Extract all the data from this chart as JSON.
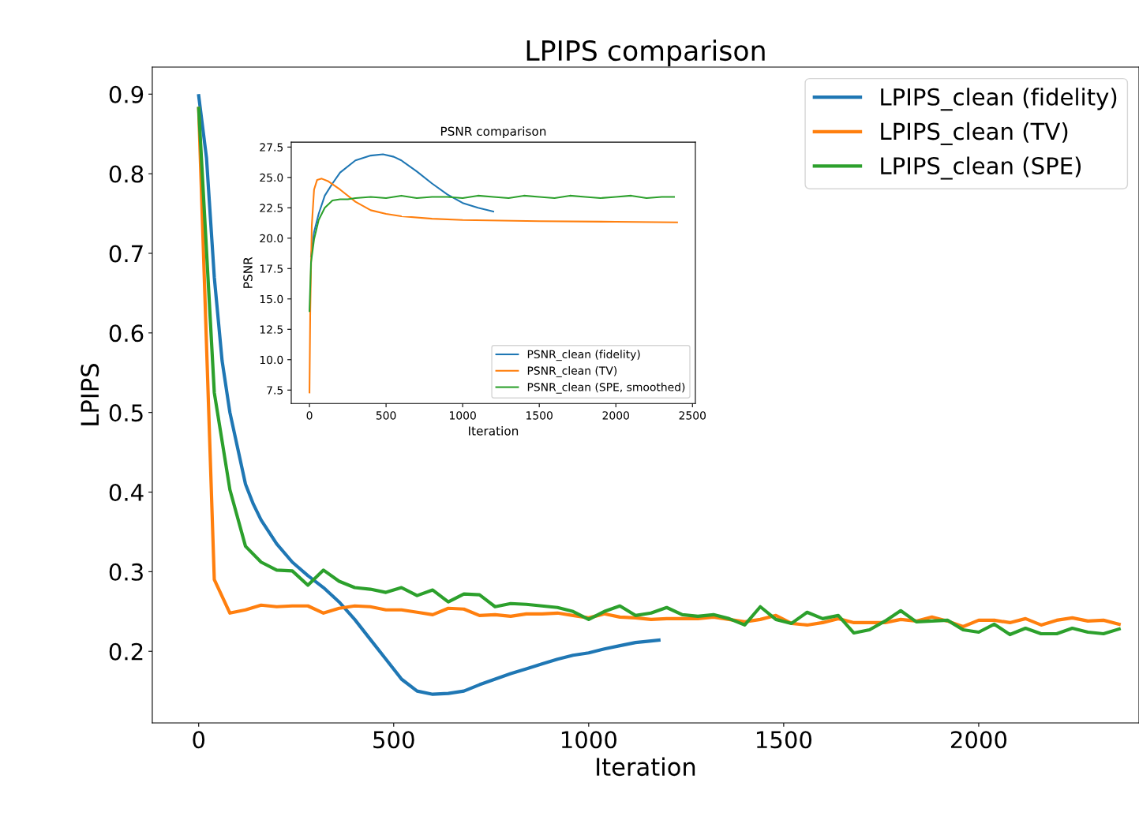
{
  "chart_data": [
    {
      "type": "line",
      "title": "LPIPS comparison",
      "xlabel": "Iteration",
      "ylabel": "LPIPS",
      "xlim": [
        -119,
        2411
      ],
      "ylim": [
        0.11,
        0.934
      ],
      "xticks": [
        0,
        500,
        1000,
        1500,
        2000
      ],
      "yticks": [
        0.2,
        0.3,
        0.4,
        0.5,
        0.6,
        0.7,
        0.8,
        0.9
      ],
      "grid": false,
      "legend": "top right",
      "series": [
        {
          "name": "LPIPS_clean (fidelity)",
          "color": "#1f77b4",
          "x": [
            0,
            20,
            40,
            60,
            80,
            100,
            120,
            140,
            160,
            200,
            240,
            280,
            320,
            360,
            400,
            440,
            480,
            520,
            560,
            600,
            640,
            680,
            720,
            760,
            800,
            840,
            880,
            920,
            960,
            1000,
            1040,
            1080,
            1120,
            1160,
            1180
          ],
          "values": [
            0.898,
            0.82,
            0.67,
            0.565,
            0.5,
            0.455,
            0.41,
            0.385,
            0.365,
            0.335,
            0.312,
            0.295,
            0.28,
            0.262,
            0.24,
            0.215,
            0.19,
            0.165,
            0.15,
            0.146,
            0.147,
            0.15,
            0.158,
            0.165,
            0.172,
            0.178,
            0.184,
            0.19,
            0.195,
            0.198,
            0.203,
            0.207,
            0.211,
            0.213,
            0.214
          ]
        },
        {
          "name": "LPIPS_clean (TV)",
          "color": "#ff7f0e",
          "x": [
            0,
            40,
            80,
            120,
            160,
            200,
            240,
            280,
            320,
            360,
            400,
            440,
            480,
            520,
            560,
            600,
            640,
            680,
            720,
            760,
            800,
            840,
            880,
            920,
            960,
            1000,
            1040,
            1080,
            1120,
            1160,
            1200,
            1240,
            1280,
            1320,
            1360,
            1400,
            1440,
            1480,
            1520,
            1560,
            1600,
            1640,
            1680,
            1720,
            1760,
            1800,
            1840,
            1880,
            1920,
            1960,
            2000,
            2040,
            2080,
            2120,
            2160,
            2200,
            2240,
            2280,
            2320,
            2360
          ],
          "values": [
            0.882,
            0.29,
            0.248,
            0.252,
            0.258,
            0.256,
            0.257,
            0.257,
            0.248,
            0.254,
            0.257,
            0.256,
            0.252,
            0.252,
            0.249,
            0.246,
            0.254,
            0.253,
            0.245,
            0.246,
            0.244,
            0.247,
            0.247,
            0.248,
            0.245,
            0.242,
            0.247,
            0.243,
            0.242,
            0.24,
            0.241,
            0.241,
            0.241,
            0.243,
            0.24,
            0.237,
            0.24,
            0.245,
            0.235,
            0.233,
            0.236,
            0.241,
            0.236,
            0.236,
            0.236,
            0.24,
            0.238,
            0.243,
            0.238,
            0.231,
            0.239,
            0.239,
            0.236,
            0.241,
            0.233,
            0.239,
            0.242,
            0.238,
            0.239,
            0.234
          ]
        },
        {
          "name": "LPIPS_clean (SPE)",
          "color": "#2ca02c",
          "x": [
            0,
            40,
            80,
            120,
            160,
            200,
            240,
            280,
            320,
            360,
            400,
            440,
            480,
            520,
            560,
            600,
            640,
            680,
            720,
            760,
            800,
            840,
            880,
            920,
            960,
            1000,
            1040,
            1080,
            1120,
            1160,
            1200,
            1240,
            1280,
            1320,
            1360,
            1400,
            1440,
            1480,
            1520,
            1560,
            1600,
            1640,
            1680,
            1720,
            1760,
            1800,
            1840,
            1880,
            1920,
            1960,
            2000,
            2040,
            2080,
            2120,
            2160,
            2200,
            2240,
            2280,
            2320,
            2360
          ],
          "values": [
            0.882,
            0.525,
            0.403,
            0.332,
            0.312,
            0.302,
            0.301,
            0.283,
            0.302,
            0.288,
            0.28,
            0.278,
            0.274,
            0.28,
            0.27,
            0.277,
            0.262,
            0.272,
            0.271,
            0.256,
            0.26,
            0.259,
            0.257,
            0.255,
            0.25,
            0.24,
            0.25,
            0.257,
            0.245,
            0.248,
            0.255,
            0.246,
            0.244,
            0.246,
            0.241,
            0.233,
            0.256,
            0.24,
            0.235,
            0.249,
            0.241,
            0.245,
            0.223,
            0.227,
            0.238,
            0.251,
            0.237,
            0.238,
            0.239,
            0.227,
            0.224,
            0.234,
            0.221,
            0.229,
            0.222,
            0.222,
            0.229,
            0.224,
            0.222,
            0.228
          ]
        }
      ]
    },
    {
      "type": "line",
      "title": "PSNR comparison",
      "xlabel": "Iteration",
      "ylabel": "PSNR",
      "xlim": [
        -119,
        2519
      ],
      "ylim": [
        6.4,
        27.9
      ],
      "xticks": [
        0,
        500,
        1000,
        1500,
        2000,
        2500
      ],
      "yticks": [
        {
          "value": 7.5,
          "label": "7.5"
        },
        {
          "value": 10,
          "label": "10.0"
        },
        {
          "value": 12.5,
          "label": "12.5"
        },
        {
          "value": 15,
          "label": "15.0"
        },
        {
          "value": 17.5,
          "label": "17.5"
        },
        {
          "value": 20,
          "label": "20.0"
        },
        {
          "value": 22.5,
          "label": "22.5"
        },
        {
          "value": 25,
          "label": "25.0"
        },
        {
          "value": 27.5,
          "label": "27.5"
        }
      ],
      "grid": false,
      "legend": "bottom right",
      "series": [
        {
          "name": "PSNR_clean (fidelity)",
          "color": "#1f77b4",
          "x": [
            10,
            30,
            60,
            100,
            150,
            200,
            300,
            400,
            480,
            550,
            600,
            700,
            800,
            900,
            1000,
            1100,
            1200
          ],
          "values": [
            18.5,
            20.5,
            22,
            23.5,
            24.5,
            25.4,
            26.4,
            26.8,
            26.9,
            26.7,
            26.4,
            25.5,
            24.5,
            23.6,
            22.9,
            22.5,
            22.2
          ]
        },
        {
          "name": "PSNR_clean (TV)",
          "color": "#ff7f0e",
          "x": [
            0,
            5,
            15,
            30,
            50,
            80,
            120,
            200,
            300,
            400,
            500,
            600,
            800,
            1000,
            1500,
            2000,
            2400
          ],
          "values": [
            7.3,
            14,
            21,
            24,
            24.8,
            24.9,
            24.7,
            24,
            23,
            22.3,
            22,
            21.8,
            21.6,
            21.5,
            21.4,
            21.35,
            21.3
          ]
        },
        {
          "name": "PSNR_clean (SPE, smoothed)",
          "color": "#2ca02c",
          "x": [
            0,
            10,
            30,
            60,
            100,
            150,
            200,
            250,
            300,
            400,
            500,
            600,
            700,
            800,
            900,
            1000,
            1100,
            1200,
            1300,
            1400,
            1500,
            1600,
            1700,
            1800,
            1900,
            2000,
            2100,
            2200,
            2300,
            2380
          ],
          "values": [
            14,
            18,
            19.9,
            21.5,
            22.5,
            23.1,
            23.2,
            23.2,
            23.3,
            23.4,
            23.3,
            23.5,
            23.3,
            23.4,
            23.4,
            23.3,
            23.5,
            23.4,
            23.3,
            23.5,
            23.4,
            23.3,
            23.5,
            23.4,
            23.3,
            23.4,
            23.5,
            23.3,
            23.4,
            23.4
          ]
        }
      ]
    }
  ]
}
